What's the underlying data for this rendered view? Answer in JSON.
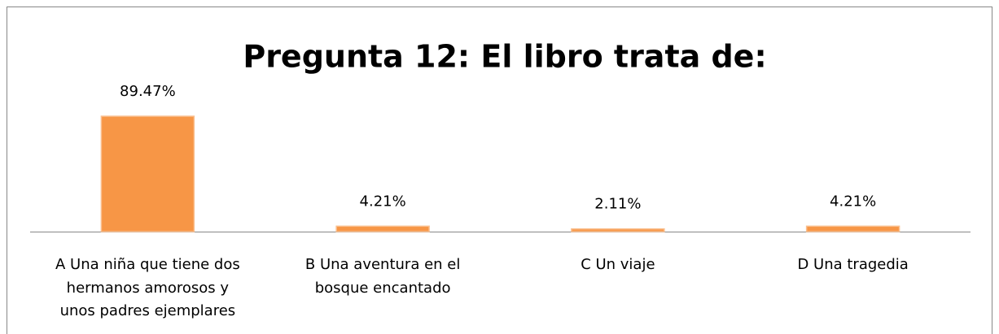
{
  "chart_data": {
    "type": "bar",
    "title": "Pregunta 12: El libro trata de:",
    "categories": [
      "A Una niña que tiene dos hermanos amorosos y unos padres ejemplares",
      "B Una aventura en el bosque encantado",
      "C Un viaje",
      "D Una tragedia"
    ],
    "values": [
      89.47,
      4.21,
      2.11,
      4.21
    ],
    "value_labels": [
      "89.47%",
      "4.21%",
      "2.11%",
      "4.21%"
    ],
    "color": "#f79646"
  }
}
